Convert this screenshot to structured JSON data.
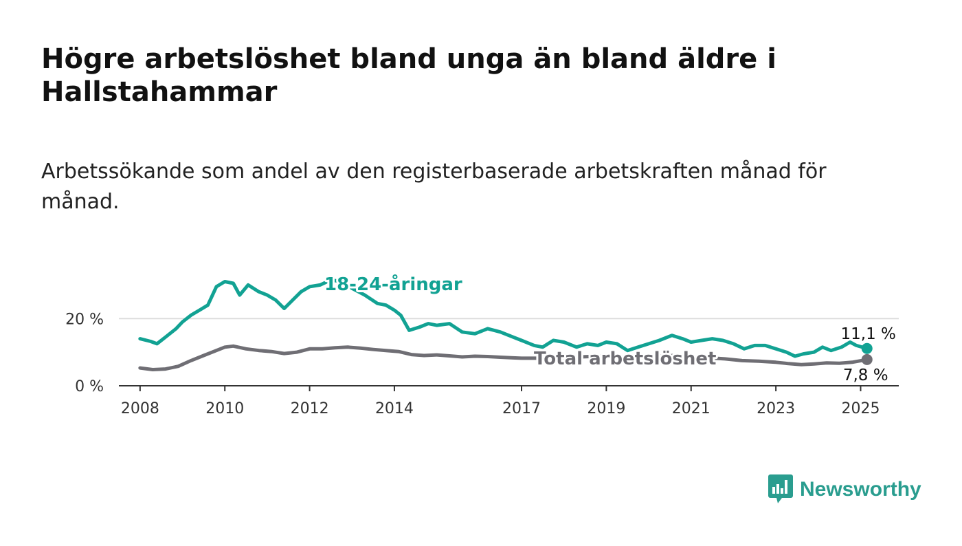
{
  "title": "Högre arbetslöshet bland unga än bland äldre i Hallstahammar",
  "subtitle": "Arbetssökande som andel av den registerbaserade arbetskraften månad för månad.",
  "brand": {
    "name": "Newsworthy",
    "icon": "newsworthy-logo-icon",
    "color": "#2a9d8f"
  },
  "colors": {
    "youth": "#12a293",
    "total": "#6f6e74",
    "grid": "#dddddd",
    "axis": "#333333"
  },
  "chart_data": {
    "type": "line",
    "ylim": [
      0,
      35
    ],
    "xlim": [
      2007.5,
      2025.9
    ],
    "y_ticks": [
      {
        "value": 0,
        "label": "0 %"
      },
      {
        "value": 20,
        "label": "20 %"
      }
    ],
    "x_ticks": [
      {
        "value": 2008,
        "label": "2008"
      },
      {
        "value": 2010,
        "label": "2010"
      },
      {
        "value": 2012,
        "label": "2012"
      },
      {
        "value": 2014,
        "label": "2014"
      },
      {
        "value": 2017,
        "label": "2017"
      },
      {
        "value": 2019,
        "label": "2019"
      },
      {
        "value": 2021,
        "label": "2021"
      },
      {
        "value": 2023,
        "label": "2023"
      },
      {
        "value": 2025,
        "label": "2025"
      }
    ],
    "series": [
      {
        "name": "18-24-åringar",
        "color_key": "youth",
        "end_label": "11,1 %",
        "points": [
          [
            2008.0,
            14.0
          ],
          [
            2008.25,
            13.2
          ],
          [
            2008.4,
            12.5
          ],
          [
            2008.6,
            14.5
          ],
          [
            2008.85,
            17.0
          ],
          [
            2009.0,
            19.0
          ],
          [
            2009.2,
            21.0
          ],
          [
            2009.4,
            22.5
          ],
          [
            2009.6,
            24.0
          ],
          [
            2009.8,
            29.5
          ],
          [
            2010.0,
            31.0
          ],
          [
            2010.2,
            30.5
          ],
          [
            2010.35,
            27.0
          ],
          [
            2010.55,
            30.0
          ],
          [
            2010.8,
            28.0
          ],
          [
            2011.0,
            27.0
          ],
          [
            2011.2,
            25.5
          ],
          [
            2011.4,
            23.0
          ],
          [
            2011.6,
            25.5
          ],
          [
            2011.8,
            28.0
          ],
          [
            2012.0,
            29.5
          ],
          [
            2012.25,
            30.0
          ],
          [
            2012.5,
            31.5
          ],
          [
            2012.75,
            31.0
          ],
          [
            2013.0,
            29.0
          ],
          [
            2013.3,
            27.0
          ],
          [
            2013.6,
            24.5
          ],
          [
            2013.8,
            24.0
          ],
          [
            2014.0,
            22.5
          ],
          [
            2014.15,
            21.0
          ],
          [
            2014.35,
            16.5
          ],
          [
            2014.6,
            17.5
          ],
          [
            2014.8,
            18.5
          ],
          [
            2015.0,
            18.0
          ],
          [
            2015.3,
            18.5
          ],
          [
            2015.6,
            16.0
          ],
          [
            2015.9,
            15.5
          ],
          [
            2016.2,
            17.0
          ],
          [
            2016.5,
            16.0
          ],
          [
            2016.8,
            14.5
          ],
          [
            2017.0,
            13.5
          ],
          [
            2017.3,
            12.0
          ],
          [
            2017.5,
            11.5
          ],
          [
            2017.75,
            13.5
          ],
          [
            2018.0,
            13.0
          ],
          [
            2018.3,
            11.5
          ],
          [
            2018.55,
            12.5
          ],
          [
            2018.8,
            12.0
          ],
          [
            2019.0,
            13.0
          ],
          [
            2019.25,
            12.5
          ],
          [
            2019.5,
            10.5
          ],
          [
            2019.75,
            11.5
          ],
          [
            2020.0,
            12.5
          ],
          [
            2020.25,
            13.5
          ],
          [
            2020.55,
            15.0
          ],
          [
            2020.8,
            14.0
          ],
          [
            2021.0,
            13.0
          ],
          [
            2021.25,
            13.5
          ],
          [
            2021.5,
            14.0
          ],
          [
            2021.75,
            13.5
          ],
          [
            2022.0,
            12.5
          ],
          [
            2022.25,
            11.0
          ],
          [
            2022.5,
            12.0
          ],
          [
            2022.75,
            12.0
          ],
          [
            2023.0,
            11.0
          ],
          [
            2023.25,
            10.0
          ],
          [
            2023.45,
            8.8
          ],
          [
            2023.65,
            9.5
          ],
          [
            2023.9,
            10.0
          ],
          [
            2024.1,
            11.5
          ],
          [
            2024.3,
            10.5
          ],
          [
            2024.55,
            11.5
          ],
          [
            2024.75,
            13.0
          ],
          [
            2024.9,
            12.0
          ],
          [
            2025.15,
            11.1
          ]
        ]
      },
      {
        "name": "Total arbetslöshet",
        "color_key": "total",
        "end_label": "7,8 %",
        "points": [
          [
            2008.0,
            5.3
          ],
          [
            2008.3,
            4.8
          ],
          [
            2008.6,
            5.0
          ],
          [
            2008.9,
            5.8
          ],
          [
            2009.2,
            7.5
          ],
          [
            2009.5,
            9.0
          ],
          [
            2009.8,
            10.5
          ],
          [
            2010.0,
            11.5
          ],
          [
            2010.2,
            11.8
          ],
          [
            2010.5,
            11.0
          ],
          [
            2010.8,
            10.5
          ],
          [
            2011.1,
            10.2
          ],
          [
            2011.4,
            9.6
          ],
          [
            2011.7,
            10.0
          ],
          [
            2012.0,
            11.0
          ],
          [
            2012.3,
            11.0
          ],
          [
            2012.6,
            11.3
          ],
          [
            2012.9,
            11.5
          ],
          [
            2013.2,
            11.2
          ],
          [
            2013.5,
            10.8
          ],
          [
            2013.8,
            10.5
          ],
          [
            2014.1,
            10.2
          ],
          [
            2014.4,
            9.3
          ],
          [
            2014.7,
            9.0
          ],
          [
            2015.0,
            9.2
          ],
          [
            2015.3,
            8.9
          ],
          [
            2015.6,
            8.6
          ],
          [
            2015.9,
            8.8
          ],
          [
            2016.2,
            8.7
          ],
          [
            2016.5,
            8.5
          ],
          [
            2016.8,
            8.3
          ],
          [
            2017.0,
            8.2
          ],
          [
            2017.4,
            8.2
          ],
          [
            2017.8,
            8.3
          ],
          [
            2018.2,
            8.5
          ],
          [
            2018.6,
            8.7
          ],
          [
            2019.0,
            8.8
          ],
          [
            2019.4,
            8.6
          ],
          [
            2019.8,
            8.4
          ],
          [
            2020.2,
            8.8
          ],
          [
            2020.6,
            9.0
          ],
          [
            2021.0,
            8.5
          ],
          [
            2021.4,
            8.3
          ],
          [
            2021.8,
            8.0
          ],
          [
            2022.2,
            7.5
          ],
          [
            2022.6,
            7.3
          ],
          [
            2023.0,
            7.0
          ],
          [
            2023.3,
            6.6
          ],
          [
            2023.6,
            6.3
          ],
          [
            2023.9,
            6.5
          ],
          [
            2024.2,
            6.8
          ],
          [
            2024.5,
            6.7
          ],
          [
            2024.8,
            7.0
          ],
          [
            2025.15,
            7.8
          ]
        ]
      }
    ]
  }
}
